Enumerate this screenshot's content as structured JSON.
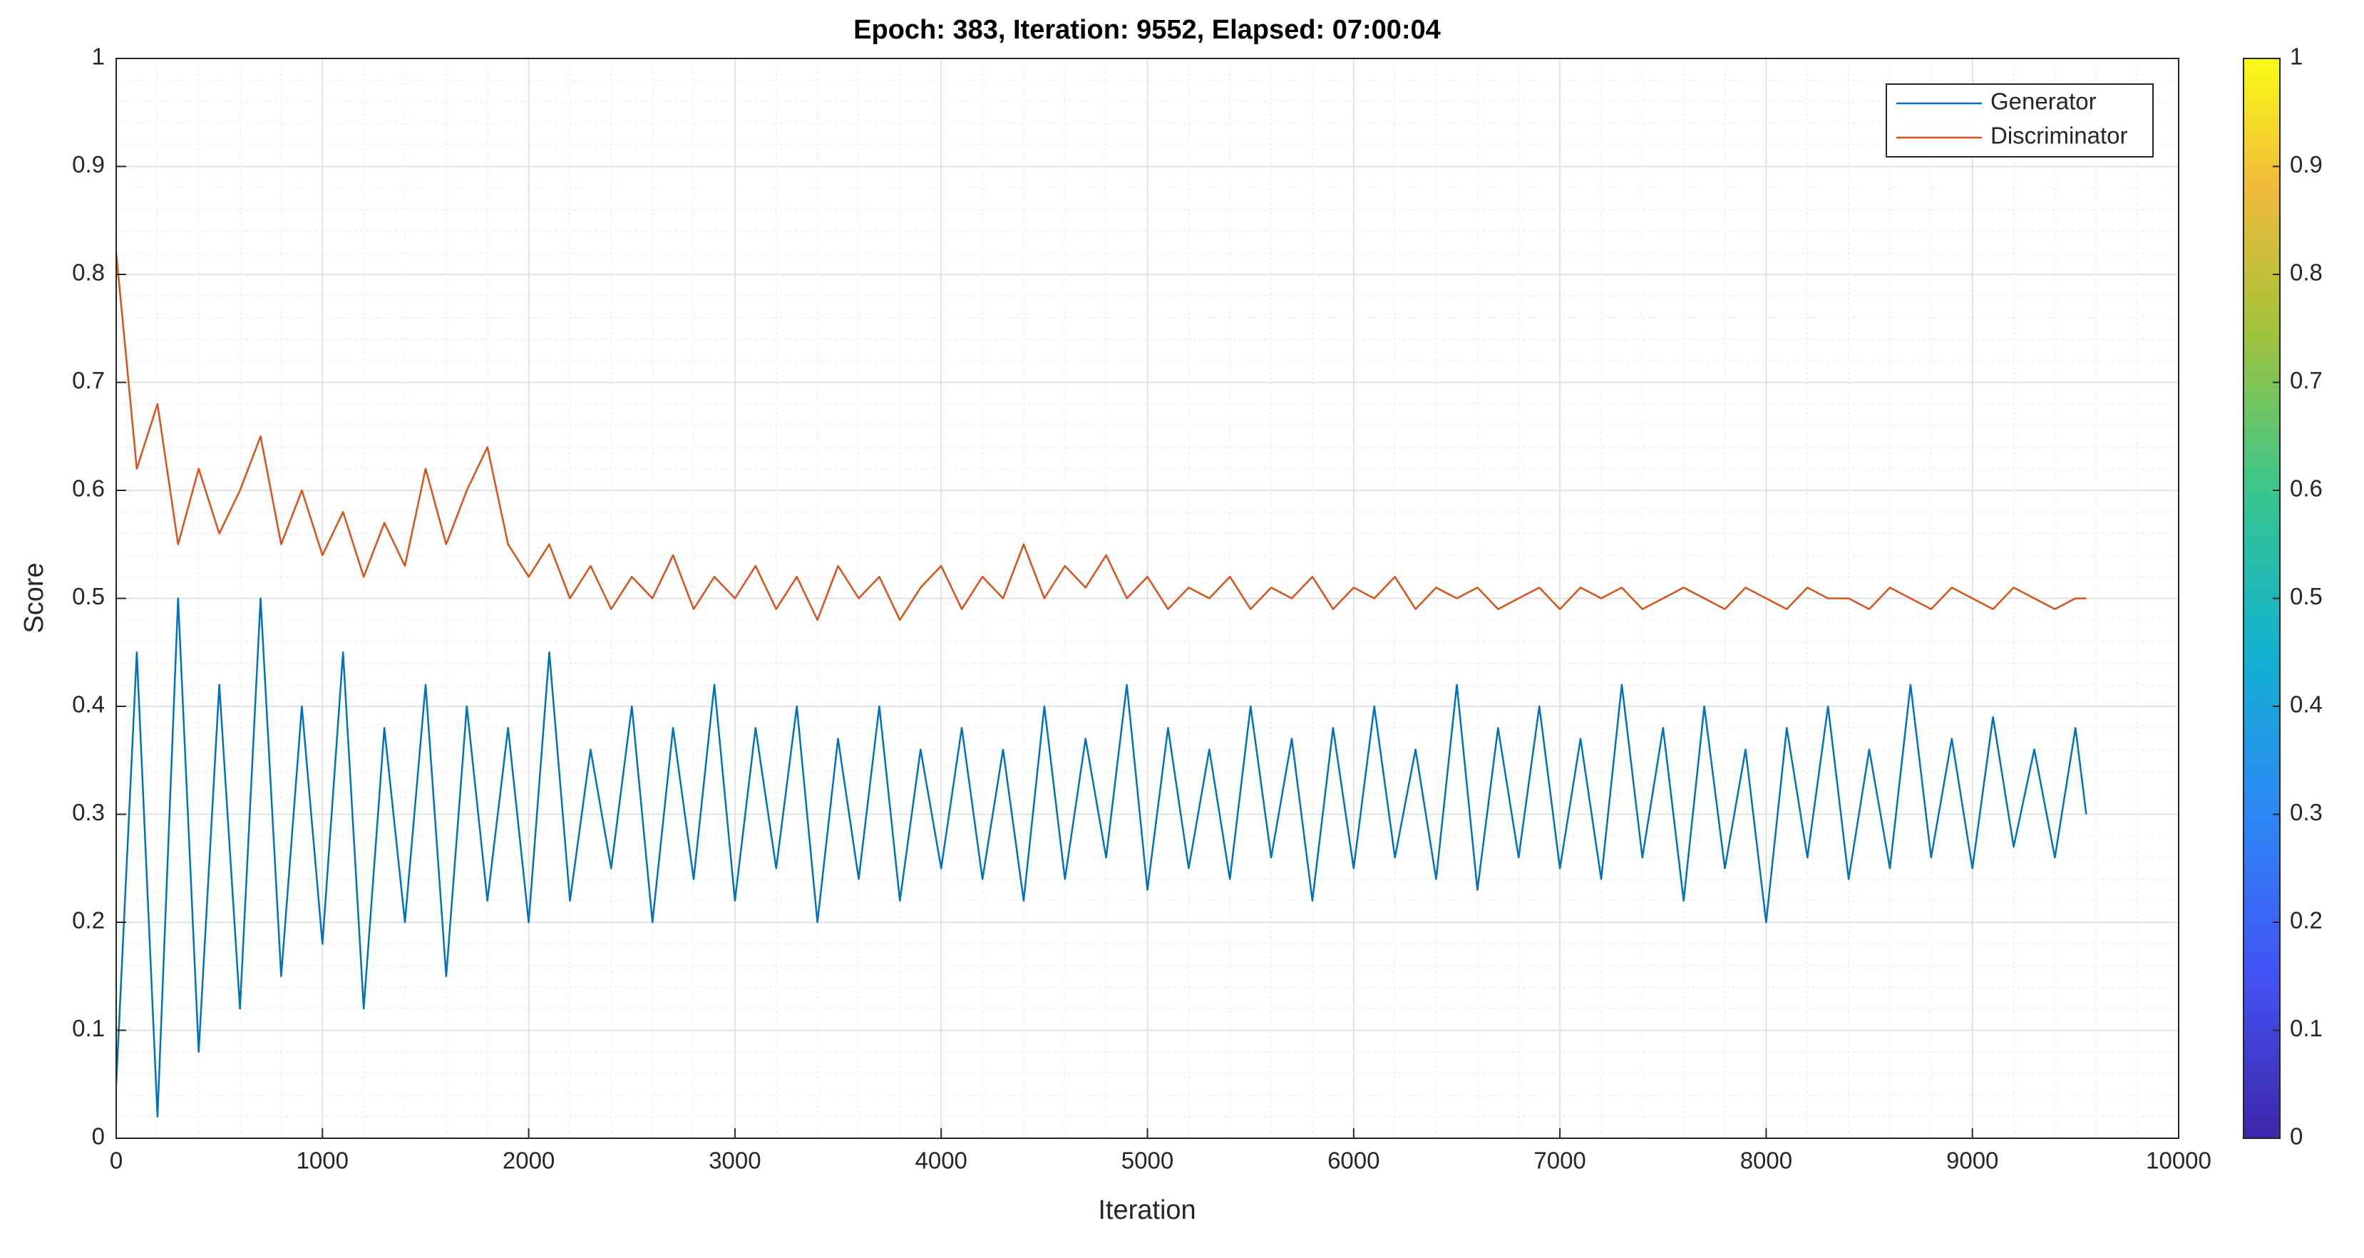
{
  "chart_data": {
    "type": "line",
    "title": "Epoch: 383, Iteration: 9552, Elapsed: 07:00:04",
    "xlabel": "Iteration",
    "ylabel": "Score",
    "x": [
      0,
      100,
      200,
      300,
      400,
      500,
      600,
      700,
      800,
      900,
      1000,
      1100,
      1200,
      1300,
      1400,
      1500,
      1600,
      1700,
      1800,
      1900,
      2000,
      2100,
      2200,
      2300,
      2400,
      2500,
      2600,
      2700,
      2800,
      2900,
      3000,
      3100,
      3200,
      3300,
      3400,
      3500,
      3600,
      3700,
      3800,
      3900,
      4000,
      4100,
      4200,
      4300,
      4400,
      4500,
      4600,
      4700,
      4800,
      4900,
      5000,
      5100,
      5200,
      5300,
      5400,
      5500,
      5600,
      5700,
      5800,
      5900,
      6000,
      6100,
      6200,
      6300,
      6400,
      6500,
      6600,
      6700,
      6800,
      6900,
      7000,
      7100,
      7200,
      7300,
      7400,
      7500,
      7600,
      7700,
      7800,
      7900,
      8000,
      8100,
      8200,
      8300,
      8400,
      8500,
      8600,
      8700,
      8800,
      8900,
      9000,
      9100,
      9200,
      9300,
      9400,
      9500,
      9552
    ],
    "series": [
      {
        "name": "Generator",
        "color": "#0072bd",
        "values": [
          0.05,
          0.45,
          0.02,
          0.5,
          0.08,
          0.42,
          0.12,
          0.5,
          0.15,
          0.4,
          0.18,
          0.45,
          0.12,
          0.38,
          0.2,
          0.42,
          0.15,
          0.4,
          0.22,
          0.38,
          0.2,
          0.45,
          0.22,
          0.36,
          0.25,
          0.4,
          0.2,
          0.38,
          0.24,
          0.42,
          0.22,
          0.38,
          0.25,
          0.4,
          0.2,
          0.37,
          0.24,
          0.4,
          0.22,
          0.36,
          0.25,
          0.38,
          0.24,
          0.36,
          0.22,
          0.4,
          0.24,
          0.37,
          0.26,
          0.42,
          0.23,
          0.38,
          0.25,
          0.36,
          0.24,
          0.4,
          0.26,
          0.37,
          0.22,
          0.38,
          0.25,
          0.4,
          0.26,
          0.36,
          0.24,
          0.42,
          0.23,
          0.38,
          0.26,
          0.4,
          0.25,
          0.37,
          0.24,
          0.42,
          0.26,
          0.38,
          0.22,
          0.4,
          0.25,
          0.36,
          0.2,
          0.38,
          0.26,
          0.4,
          0.24,
          0.36,
          0.25,
          0.42,
          0.26,
          0.37,
          0.25,
          0.39,
          0.27,
          0.36,
          0.26,
          0.38,
          0.3
        ]
      },
      {
        "name": "Discriminator",
        "color": "#d95319",
        "values": [
          0.82,
          0.62,
          0.68,
          0.55,
          0.62,
          0.56,
          0.6,
          0.65,
          0.55,
          0.6,
          0.54,
          0.58,
          0.52,
          0.57,
          0.53,
          0.62,
          0.55,
          0.6,
          0.64,
          0.55,
          0.52,
          0.55,
          0.5,
          0.53,
          0.49,
          0.52,
          0.5,
          0.54,
          0.49,
          0.52,
          0.5,
          0.53,
          0.49,
          0.52,
          0.48,
          0.53,
          0.5,
          0.52,
          0.48,
          0.51,
          0.53,
          0.49,
          0.52,
          0.5,
          0.55,
          0.5,
          0.53,
          0.51,
          0.54,
          0.5,
          0.52,
          0.49,
          0.51,
          0.5,
          0.52,
          0.49,
          0.51,
          0.5,
          0.52,
          0.49,
          0.51,
          0.5,
          0.52,
          0.49,
          0.51,
          0.5,
          0.51,
          0.49,
          0.5,
          0.51,
          0.49,
          0.51,
          0.5,
          0.51,
          0.49,
          0.5,
          0.51,
          0.5,
          0.49,
          0.51,
          0.5,
          0.49,
          0.51,
          0.5,
          0.5,
          0.49,
          0.51,
          0.5,
          0.49,
          0.51,
          0.5,
          0.49,
          0.51,
          0.5,
          0.49,
          0.5,
          0.5
        ]
      }
    ],
    "xlim": [
      0,
      10000
    ],
    "xticks": [
      0,
      1000,
      2000,
      3000,
      4000,
      5000,
      6000,
      7000,
      8000,
      9000,
      10000
    ],
    "ylim": [
      0,
      1
    ],
    "yticks": [
      0,
      0.1,
      0.2,
      0.3,
      0.4,
      0.5,
      0.6,
      0.7,
      0.8,
      0.9,
      1
    ],
    "grid": true,
    "minor_grid": true,
    "legend": "northeast",
    "colorbar": {
      "lim": [
        0,
        1
      ],
      "ticks": [
        0,
        0.1,
        0.2,
        0.3,
        0.4,
        0.5,
        0.6,
        0.7,
        0.8,
        0.9,
        1
      ]
    }
  }
}
